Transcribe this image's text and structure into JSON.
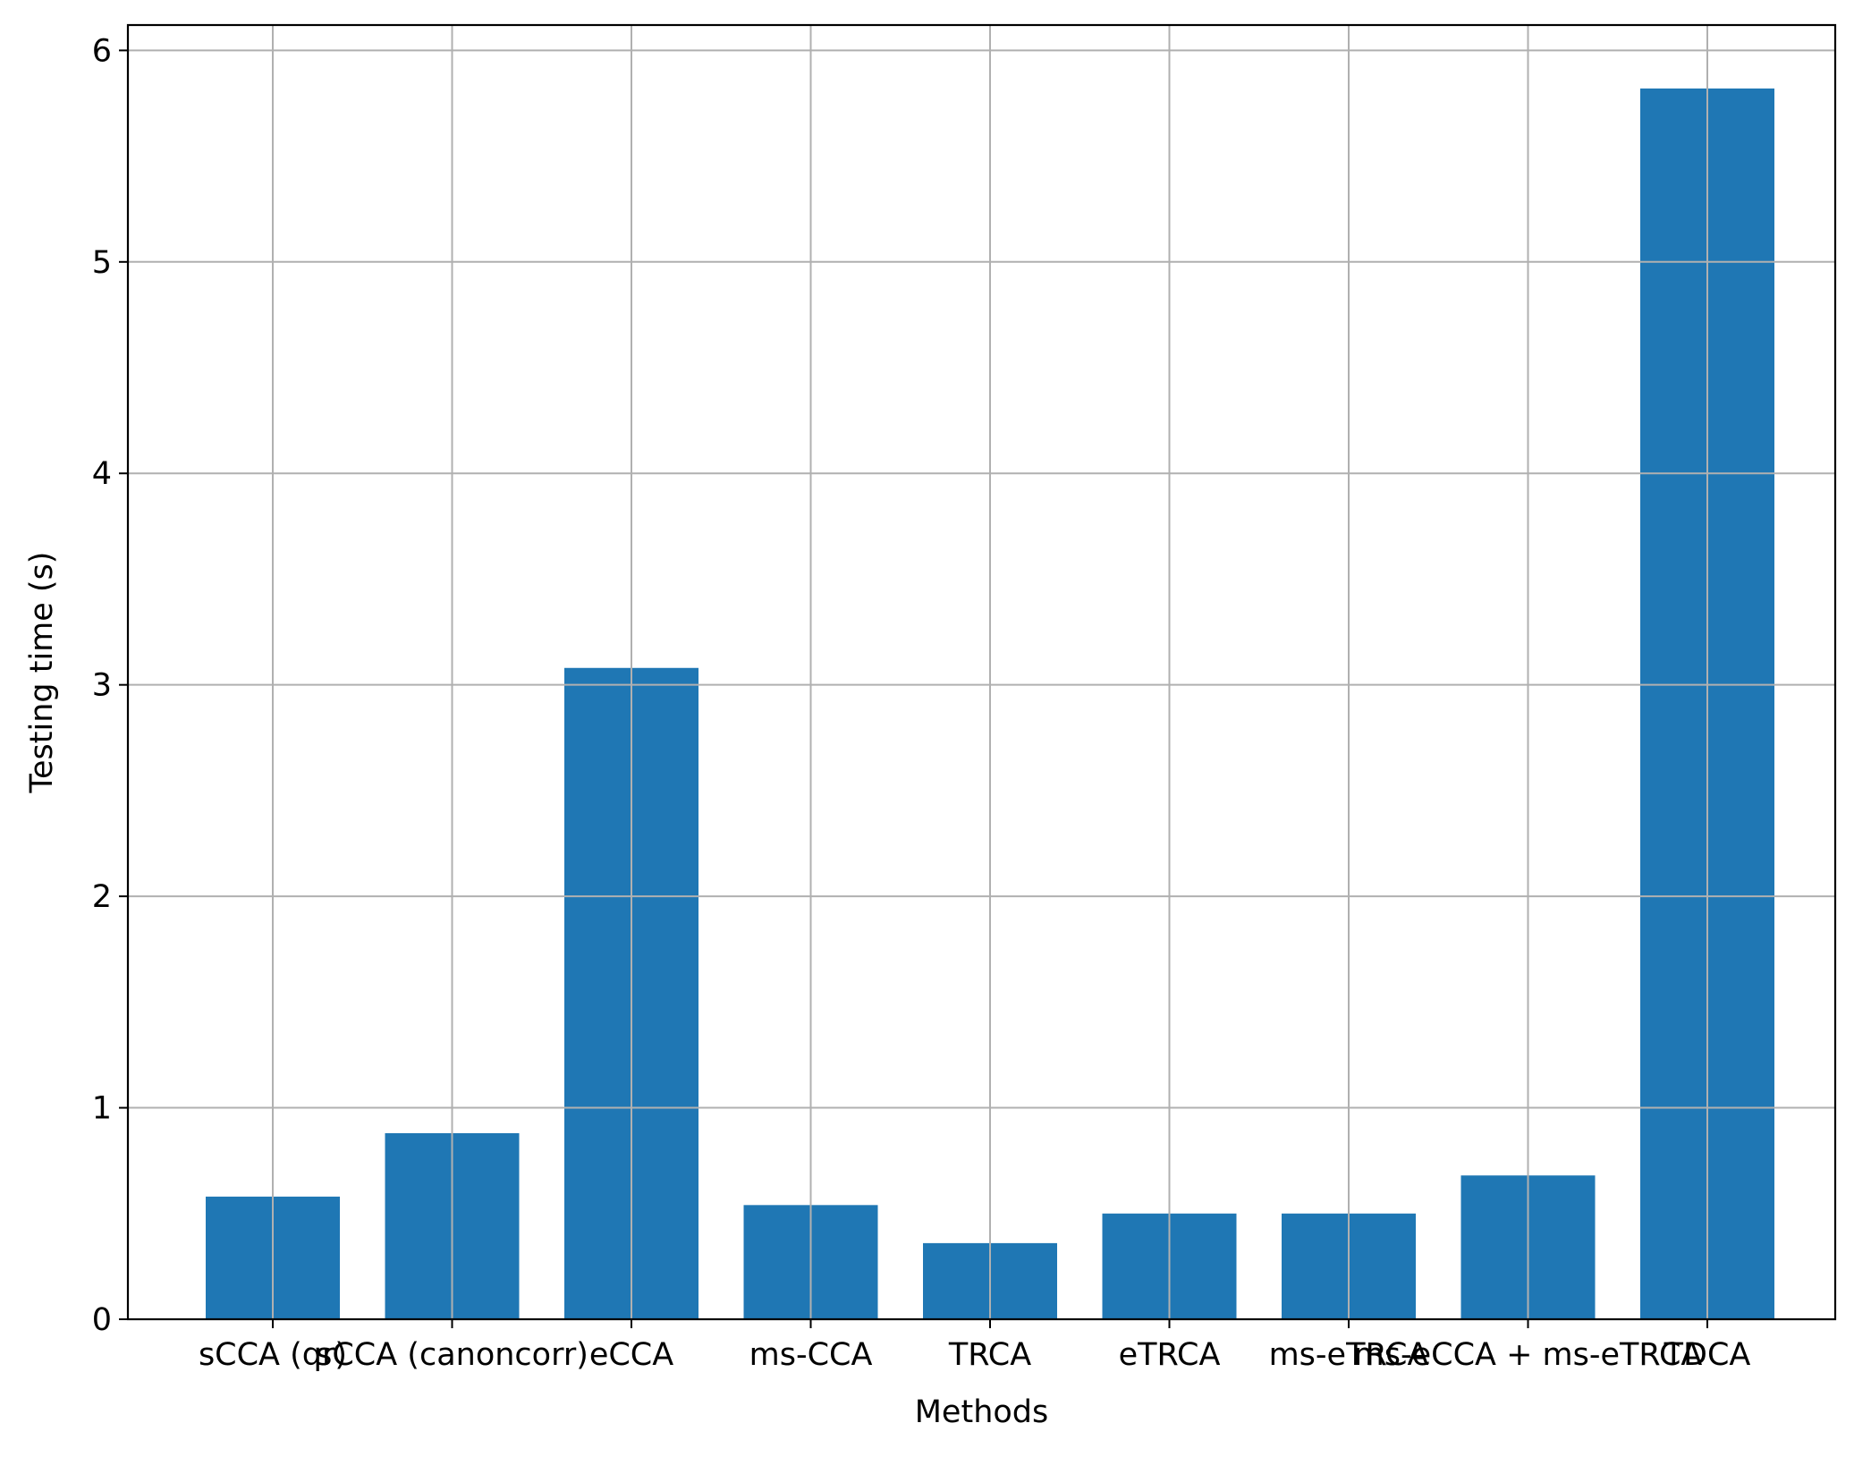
{
  "chart_data": {
    "type": "bar",
    "title": "",
    "xlabel": "Methods",
    "ylabel": "Testing time (s)",
    "categories": [
      "sCCA (qr)",
      "sCCA (canoncorr)",
      "eCCA",
      "ms-CCA",
      "TRCA",
      "eTRCA",
      "ms-eTRCA",
      "ms-eCCA + ms-eTRCA",
      "TDCA"
    ],
    "values": [
      0.58,
      0.88,
      3.08,
      0.54,
      0.36,
      0.5,
      0.5,
      0.68,
      5.82
    ],
    "ylim": [
      0,
      6.12
    ],
    "yticks": [
      0,
      1,
      2,
      3,
      4,
      5,
      6
    ],
    "grid": true,
    "colors": {
      "bar": "#1f77b4",
      "grid": "#b0b0b0",
      "axis": "#000000"
    }
  }
}
